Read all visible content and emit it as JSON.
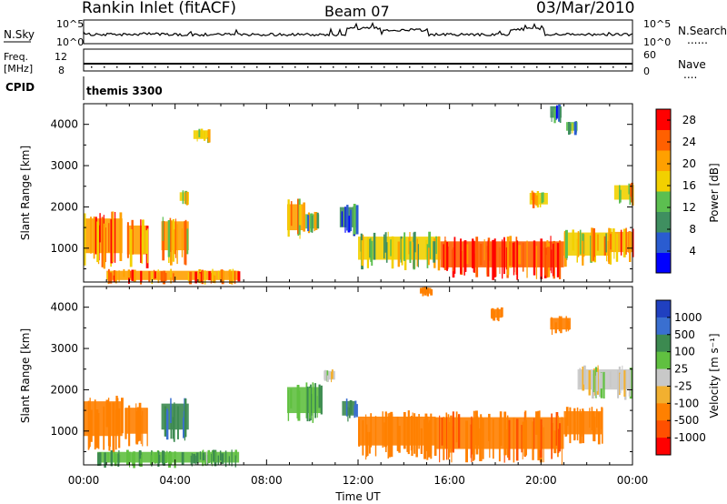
{
  "header": {
    "station": "Rankin Inlet (fitACF)",
    "beam": "Beam 07",
    "date": "03/Mar/2010"
  },
  "noise_panel": {
    "left_label": "N.Sky",
    "right_label": "N.Search",
    "right_label_marker": "......",
    "ticks": [
      "10^5",
      "10^0"
    ]
  },
  "freq_panel": {
    "label_line1": "Freq.",
    "label_line2": "[MHz]",
    "left_ticks": [
      "12",
      "8"
    ],
    "right_label": "Nave",
    "right_label_marker": "....",
    "right_ticks": [
      "60",
      "0"
    ]
  },
  "cpid": {
    "label": "CPID",
    "value": "themis 3300"
  },
  "colors": {
    "power_scale": [
      "#0000ff",
      "#2a5cd0",
      "#3f8f60",
      "#5cbf50",
      "#f2d000",
      "#ffa000",
      "#ff6000",
      "#ff0000"
    ],
    "velocity_scale": [
      "#2040c0",
      "#3a6fd0",
      "#3c8a50",
      "#60c040",
      "#c8c8c8",
      "#f2b030",
      "#ff8000",
      "#ff5000",
      "#ff0000"
    ]
  },
  "chart_data": [
    {
      "type": "heatmap",
      "name": "power",
      "xlabel": "Time UT",
      "ylabel": "Slant Range [km]",
      "xlim": [
        0,
        24
      ],
      "ylim": [
        180,
        4500
      ],
      "x_ticks": [
        "00:00",
        "04:00",
        "08:00",
        "12:00",
        "16:00",
        "20:00",
        "00:00"
      ],
      "y_ticks": [
        1000,
        2000,
        3000,
        4000
      ],
      "colorbar": {
        "label": "Power [dB]",
        "ticks": [
          4,
          8,
          12,
          16,
          20,
          24,
          28
        ],
        "range": [
          0,
          30
        ]
      },
      "regions": [
        {
          "t0": 0.0,
          "t1": 1.7,
          "r0": 700,
          "r1": 1900,
          "value": 22
        },
        {
          "t0": 1.9,
          "t1": 2.8,
          "r0": 700,
          "r1": 1700,
          "value": 22
        },
        {
          "t0": 3.4,
          "t1": 4.6,
          "r0": 800,
          "r1": 1800,
          "value": 20
        },
        {
          "t0": 1.0,
          "t1": 6.8,
          "r0": 180,
          "r1": 500,
          "value": 22
        },
        {
          "t0": 4.2,
          "t1": 4.6,
          "r0": 2100,
          "r1": 2400,
          "value": 18
        },
        {
          "t0": 4.8,
          "t1": 5.5,
          "r0": 3600,
          "r1": 3900,
          "value": 16
        },
        {
          "t0": 8.9,
          "t1": 9.6,
          "r0": 1300,
          "r1": 2200,
          "value": 20
        },
        {
          "t0": 9.7,
          "t1": 10.3,
          "r0": 1400,
          "r1": 1900,
          "value": 14
        },
        {
          "t0": 11.2,
          "t1": 12.0,
          "r0": 1400,
          "r1": 2100,
          "value": 8
        },
        {
          "t0": 12.0,
          "t1": 15.6,
          "r0": 600,
          "r1": 1400,
          "value": 16
        },
        {
          "t0": 15.6,
          "t1": 21.0,
          "r0": 400,
          "r1": 1300,
          "value": 26
        },
        {
          "t0": 21.0,
          "t1": 23.0,
          "r0": 700,
          "r1": 1500,
          "value": 18
        },
        {
          "t0": 23.0,
          "t1": 24.0,
          "r0": 800,
          "r1": 1500,
          "value": 22
        },
        {
          "t0": 19.5,
          "t1": 20.3,
          "r0": 2000,
          "r1": 2400,
          "value": 18
        },
        {
          "t0": 23.2,
          "t1": 24.0,
          "r0": 2100,
          "r1": 2600,
          "value": 18
        },
        {
          "t0": 21.1,
          "t1": 21.6,
          "r0": 3800,
          "r1": 4100,
          "value": 12
        },
        {
          "t0": 20.4,
          "t1": 20.9,
          "r0": 4100,
          "r1": 4500,
          "value": 10
        }
      ]
    },
    {
      "type": "heatmap",
      "name": "velocity",
      "xlabel": "Time UT",
      "ylabel": "Slant Range [km]",
      "xlim": [
        0,
        24
      ],
      "ylim": [
        180,
        4500
      ],
      "x_ticks": [
        "00:00",
        "04:00",
        "08:00",
        "12:00",
        "16:00",
        "20:00",
        "00:00"
      ],
      "y_ticks": [
        1000,
        2000,
        3000,
        4000
      ],
      "colorbar": {
        "label": "Velocity [m s⁻¹]",
        "ticks": [
          "1000",
          "500",
          "100",
          "25",
          "-25",
          "-100",
          "-500",
          "-1000"
        ]
      },
      "regions": [
        {
          "t0": 0.0,
          "t1": 1.7,
          "r0": 700,
          "r1": 1900,
          "value": -300
        },
        {
          "t0": 1.8,
          "t1": 2.8,
          "r0": 800,
          "r1": 1700,
          "value": -300
        },
        {
          "t0": 3.4,
          "t1": 4.6,
          "r0": 900,
          "r1": 1800,
          "value": 300
        },
        {
          "t0": 0.6,
          "t1": 6.8,
          "r0": 180,
          "r1": 550,
          "value": 60
        },
        {
          "t0": 8.9,
          "t1": 10.4,
          "r0": 1300,
          "r1": 2200,
          "value": 60
        },
        {
          "t0": 10.5,
          "t1": 11.0,
          "r0": 2200,
          "r1": 2500,
          "value": 0
        },
        {
          "t0": 11.3,
          "t1": 11.9,
          "r0": 1300,
          "r1": 1800,
          "value": 300
        },
        {
          "t0": 12.0,
          "t1": 15.4,
          "r0": 500,
          "r1": 1500,
          "value": -200
        },
        {
          "t0": 15.4,
          "t1": 21.0,
          "r0": 400,
          "r1": 1500,
          "value": -400
        },
        {
          "t0": 21.0,
          "t1": 22.7,
          "r0": 800,
          "r1": 1600,
          "value": -200
        },
        {
          "t0": 21.6,
          "t1": 24.0,
          "r0": 1900,
          "r1": 2600,
          "value": 0
        },
        {
          "t0": 20.4,
          "t1": 21.3,
          "r0": 3400,
          "r1": 3800,
          "value": -300
        },
        {
          "t0": 14.7,
          "t1": 15.2,
          "r0": 4300,
          "r1": 4500,
          "value": -200
        },
        {
          "t0": 17.8,
          "t1": 18.3,
          "r0": 3700,
          "r1": 4000,
          "value": -300
        }
      ]
    }
  ]
}
